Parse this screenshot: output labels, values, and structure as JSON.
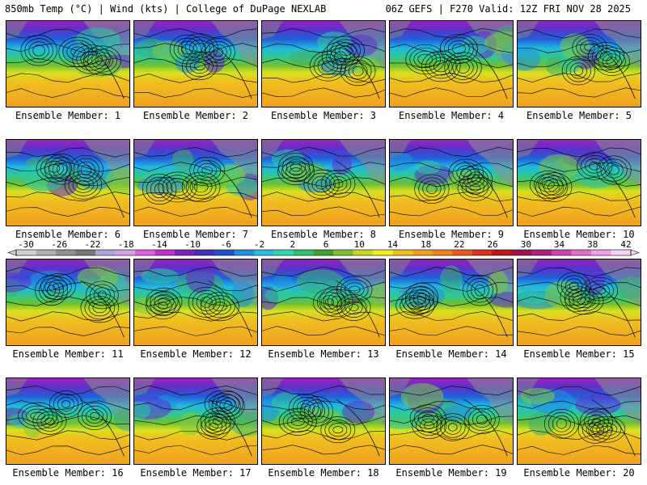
{
  "header": {
    "left": "850mb Temp (°C) | Wind (kts) | College of DuPage NEXLAB",
    "right": "06Z GEFS | F270 Valid: 12Z FRI NOV 28 2025"
  },
  "colorbar": {
    "labels": [
      "-30",
      "-26",
      "-22",
      "-18",
      "-14",
      "-10",
      "-6",
      "-2",
      "2",
      "6",
      "10",
      "14",
      "18",
      "22",
      "26",
      "30",
      "34",
      "38",
      "42"
    ],
    "colors": [
      "#d0d0d0",
      "#b0b0b0",
      "#909090",
      "#787878",
      "#a8a8d8",
      "#d8a0e8",
      "#e060e0",
      "#c030d0",
      "#8020c0",
      "#4030b8",
      "#2050d0",
      "#2090e0",
      "#20c0e0",
      "#30d8b0",
      "#30c070",
      "#40a030",
      "#80c030",
      "#c8d820",
      "#f0f020",
      "#f0c020",
      "#f0a020",
      "#f08020",
      "#e85820",
      "#e03020",
      "#c01818",
      "#a01050",
      "#b02080",
      "#d040b0",
      "#e070d0",
      "#f0a0e8",
      "#f8d0f8"
    ]
  },
  "members": [
    {
      "label": "Ensemble Member: 1",
      "warmth": 0.55
    },
    {
      "label": "Ensemble Member: 2",
      "warmth": 0.5
    },
    {
      "label": "Ensemble Member: 3",
      "warmth": 0.6
    },
    {
      "label": "Ensemble Member: 4",
      "warmth": 0.5
    },
    {
      "label": "Ensemble Member: 5",
      "warmth": 0.65
    },
    {
      "label": "Ensemble Member: 6",
      "warmth": 0.45
    },
    {
      "label": "Ensemble Member: 7",
      "warmth": 0.5
    },
    {
      "label": "Ensemble Member: 8",
      "warmth": 0.45
    },
    {
      "label": "Ensemble Member: 9",
      "warmth": 0.5
    },
    {
      "label": "Ensemble Member: 10",
      "warmth": 0.45
    },
    {
      "label": "Ensemble Member: 11",
      "warmth": 0.55
    },
    {
      "label": "Ensemble Member: 12",
      "warmth": 0.5
    },
    {
      "label": "Ensemble Member: 13",
      "warmth": 0.55
    },
    {
      "label": "Ensemble Member: 14",
      "warmth": 0.45
    },
    {
      "label": "Ensemble Member: 15",
      "warmth": 0.55
    },
    {
      "label": "Ensemble Member: 16",
      "warmth": 0.4
    },
    {
      "label": "Ensemble Member: 17",
      "warmth": 0.45
    },
    {
      "label": "Ensemble Member: 18",
      "warmth": 0.4
    },
    {
      "label": "Ensemble Member: 19",
      "warmth": 0.45
    },
    {
      "label": "Ensemble Member: 20",
      "warmth": 0.5
    }
  ]
}
